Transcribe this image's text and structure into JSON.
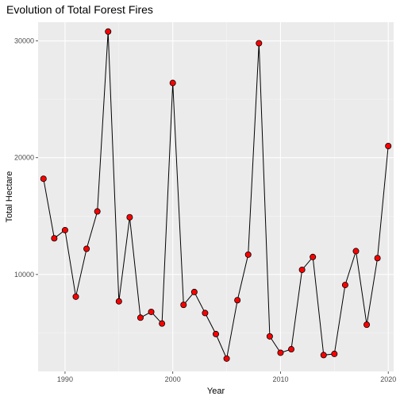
{
  "chart_data": {
    "type": "line",
    "title": "Evolution of Total Forest Fires",
    "xlabel": "Year",
    "ylabel": "Total Hectare",
    "xlim": [
      1987.5,
      2020.5
    ],
    "ylim": [
      1700,
      31600
    ],
    "x_ticks": [
      1990,
      2000,
      2010,
      2020
    ],
    "y_ticks": [
      10000,
      20000,
      30000
    ],
    "grid": true,
    "marker_color": "#ff0000",
    "line_color": "#000000",
    "panel_background": "#ebebeb",
    "x": [
      1988,
      1989,
      1990,
      1991,
      1992,
      1993,
      1994,
      1995,
      1996,
      1997,
      1998,
      1999,
      2000,
      2001,
      2002,
      2003,
      2004,
      2005,
      2006,
      2007,
      2008,
      2009,
      2010,
      2011,
      2012,
      2013,
      2014,
      2015,
      2016,
      2017,
      2018,
      2019,
      2020
    ],
    "values": [
      18200,
      13100,
      13800,
      8100,
      12200,
      15400,
      30800,
      7700,
      14900,
      6300,
      6800,
      5800,
      26400,
      7400,
      8500,
      6700,
      4900,
      2800,
      7800,
      11700,
      29800,
      4700,
      3300,
      3600,
      10400,
      11500,
      3100,
      3200,
      9100,
      12000,
      5700,
      11400,
      21000
    ]
  }
}
